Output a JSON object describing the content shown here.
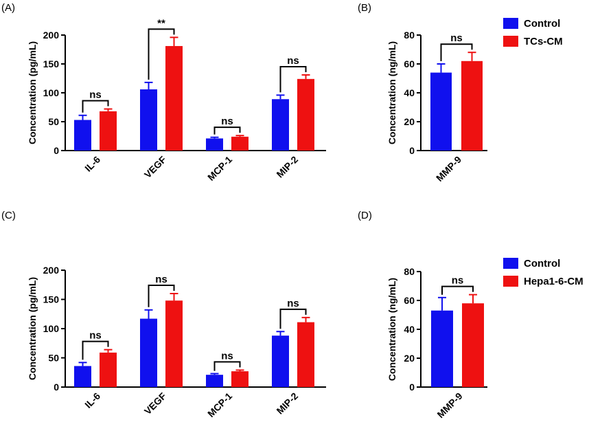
{
  "colors": {
    "control": "#1010ee",
    "treatment": "#ee1111",
    "axis": "#000000"
  },
  "chart_data": [
    {
      "panel": "(A)",
      "type": "bar",
      "ylabel": "Concentration (pg/mL)",
      "ylim": [
        0,
        200
      ],
      "yticks": [
        "0",
        "50",
        "100",
        "150",
        "200"
      ],
      "categories": [
        "IL-6",
        "VEGF",
        "MCP-1",
        "MIP-2"
      ],
      "series": [
        {
          "name": "Control",
          "values": [
            53,
            106,
            21,
            89
          ],
          "errors": [
            8,
            12,
            2,
            7
          ]
        },
        {
          "name": "TCs-CM",
          "values": [
            68,
            181,
            24,
            124
          ],
          "errors": [
            4,
            15,
            2,
            7
          ]
        }
      ],
      "significance": [
        "ns",
        "**",
        "ns",
        "ns"
      ]
    },
    {
      "panel": "(B)",
      "type": "bar",
      "ylabel": "Concentration (ng/mL)",
      "ylim": [
        0,
        80
      ],
      "yticks": [
        "0",
        "20",
        "40",
        "60",
        "80"
      ],
      "categories": [
        "MMP-9"
      ],
      "series": [
        {
          "name": "Control",
          "values": [
            54
          ],
          "errors": [
            6
          ]
        },
        {
          "name": "TCs-CM",
          "values": [
            62
          ],
          "errors": [
            6
          ]
        }
      ],
      "significance": [
        "ns"
      ],
      "legend": [
        "Control",
        "TCs-CM"
      ]
    },
    {
      "panel": "(C)",
      "type": "bar",
      "ylabel": "Concentration (pg/mL)",
      "ylim": [
        0,
        200
      ],
      "yticks": [
        "0",
        "50",
        "100",
        "150",
        "200"
      ],
      "categories": [
        "IL-6",
        "VEGF",
        "MCP-1",
        "MIP-2"
      ],
      "series": [
        {
          "name": "Control",
          "values": [
            36,
            117,
            21,
            88
          ],
          "errors": [
            6,
            15,
            2,
            7
          ]
        },
        {
          "name": "Hepa1-6-CM",
          "values": [
            59,
            148,
            27,
            111
          ],
          "errors": [
            5,
            12,
            2,
            8
          ]
        }
      ],
      "significance": [
        "ns",
        "ns",
        "ns",
        "ns"
      ]
    },
    {
      "panel": "(D)",
      "type": "bar",
      "ylabel": "Concentration (ng/mL)",
      "ylim": [
        0,
        80
      ],
      "yticks": [
        "0",
        "20",
        "40",
        "60",
        "80"
      ],
      "categories": [
        "MMP-9"
      ],
      "series": [
        {
          "name": "Control",
          "values": [
            53
          ],
          "errors": [
            9
          ]
        },
        {
          "name": "Hepa1-6-CM",
          "values": [
            58
          ],
          "errors": [
            6
          ]
        }
      ],
      "significance": [
        "ns"
      ],
      "legend": [
        "Control",
        "Hepa1-6-CM"
      ]
    }
  ]
}
